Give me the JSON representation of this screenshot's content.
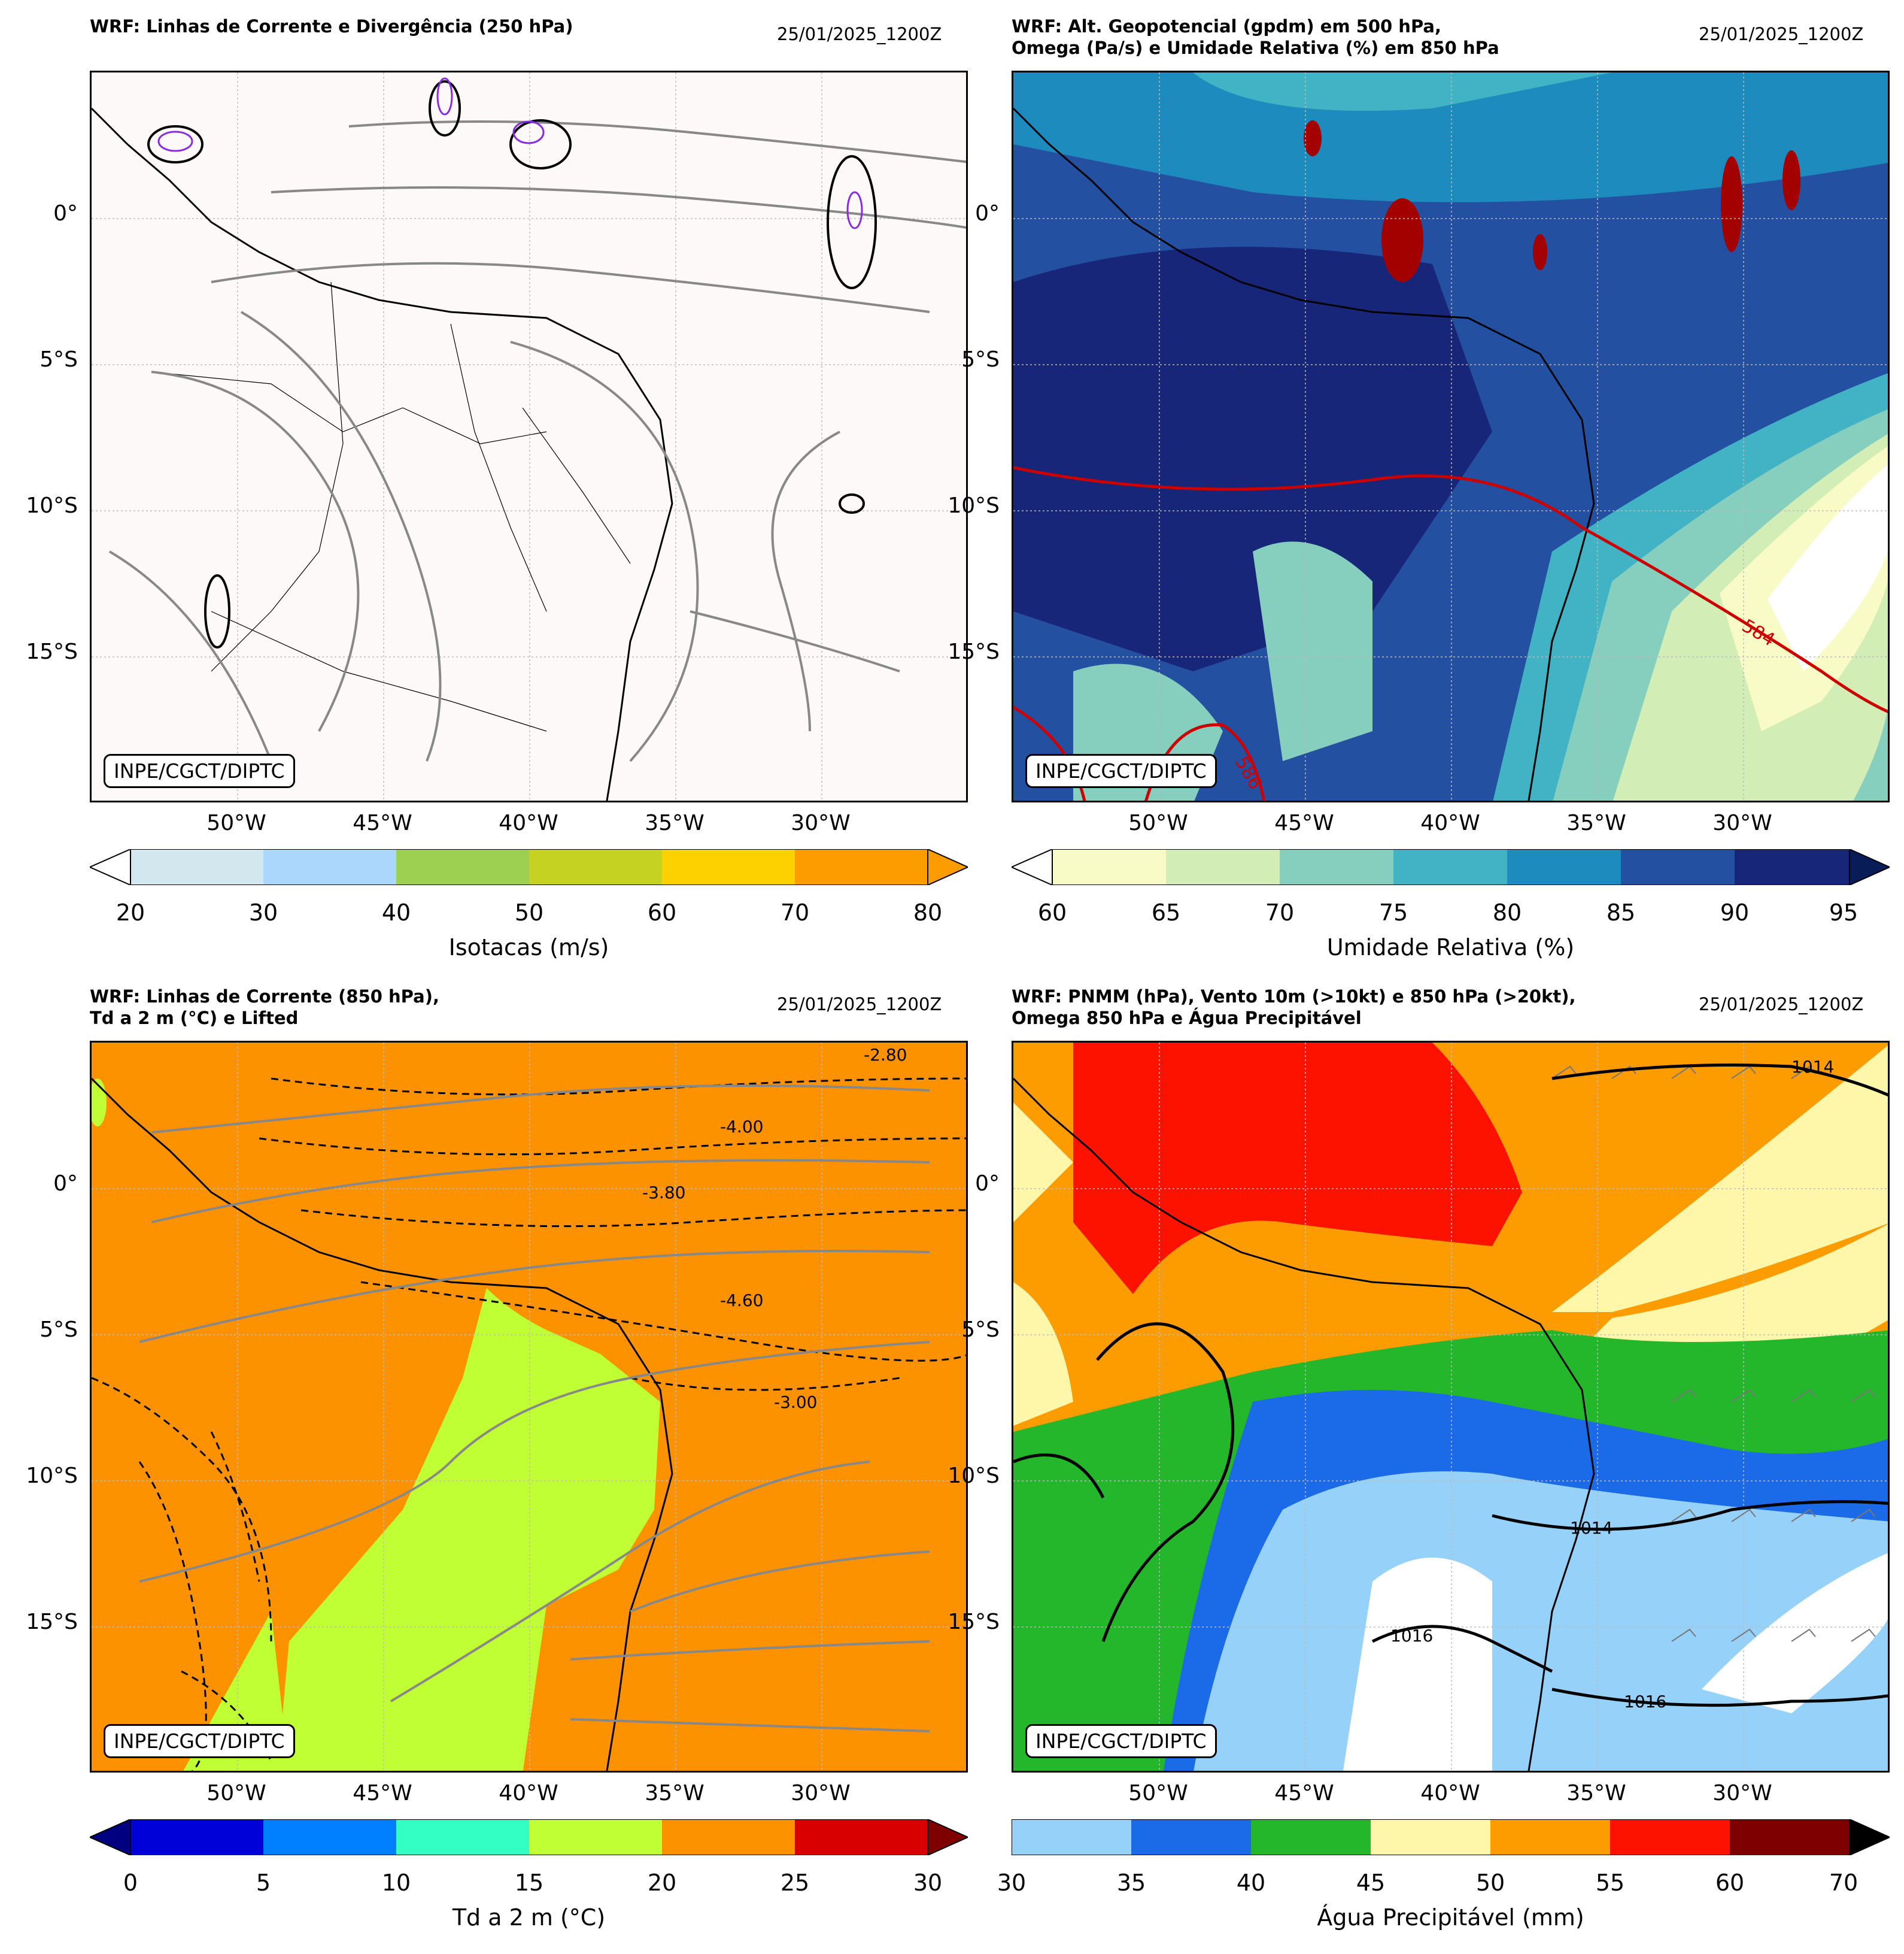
{
  "panels": [
    {
      "title": "WRF: Linhas de Corrente e Divergência (250 hPa)",
      "date": "25/01/2025_1200Z",
      "credit": "INPE/CGCT/DIPTC",
      "colorbar_label": "Isotacas (m/s)",
      "ticks": [
        "20",
        "30",
        "40",
        "50",
        "60",
        "70",
        "80"
      ],
      "colors": [
        "#d2e8ee",
        "#aad7fb",
        "#9dcf51",
        "#c6d221",
        "#fdd100",
        "#fd9c00"
      ],
      "ext_low": "#ffffff",
      "ext_high": "#fd9c00",
      "background": "#fcf9f8"
    },
    {
      "title": "WRF: Alt. Geopotencial (gpdm) em 500 hPa,\nOmega (Pa/s) e Umidade Relativa (%) em 850 hPa",
      "date": "25/01/2025_1200Z",
      "credit": "INPE/CGCT/DIPTC",
      "colorbar_label": "Umidade Relativa (%)",
      "ticks": [
        "60",
        "65",
        "70",
        "75",
        "80",
        "85",
        "90",
        "95"
      ],
      "colors": [
        "#f9fbc7",
        "#d2edb6",
        "#86cebd",
        "#41b3c4",
        "#1e8bbf",
        "#2350a0",
        "#172679"
      ],
      "ext_low": "#ffffff",
      "ext_high": "#081d58",
      "background": "#1c3f93",
      "contour_labels": [
        "584",
        "586"
      ]
    },
    {
      "title": "WRF: Linhas de Corrente (850 hPa),\nTd a 2 m (°C) e Lifted",
      "date": "25/01/2025_1200Z",
      "credit": "INPE/CGCT/DIPTC",
      "colorbar_label": "Td a 2 m (°C)",
      "ticks": [
        "0",
        "5",
        "10",
        "15",
        "20",
        "25",
        "30"
      ],
      "colors": [
        "#0000d8",
        "#0080ff",
        "#33ffc5",
        "#bfff33",
        "#fd9200",
        "#d80000"
      ],
      "ext_low": "#000080",
      "ext_high": "#7f0000",
      "background": "#fd9200",
      "contour_labels": [
        "-4.00",
        "-3.80",
        "-2.80",
        "-4.60",
        "-3.00"
      ]
    },
    {
      "title": "WRF: PNMM (hPa), Vento 10m (>10kt) e 850 hPa (>20kt),\nOmega 850 hPa e Água Precipitável",
      "date": "25/01/2025_1200Z",
      "credit": "INPE/CGCT/DIPTC",
      "colorbar_label": "Água Precipitável (mm)",
      "ticks": [
        "30",
        "35",
        "40",
        "45",
        "50",
        "55",
        "60",
        "70"
      ],
      "colors": [
        "#96d1fa",
        "#1b6ae8",
        "#25b72b",
        "#fef6a9",
        "#fd9c00",
        "#fd1200",
        "#7e0000"
      ],
      "ext_low": "#96d1fa",
      "ext_high": "#000000",
      "background": "#fd9c00",
      "contour_labels": [
        "1014",
        "1016",
        "1014",
        "1016"
      ]
    }
  ],
  "lat_labels": [
    "0°",
    "5°S",
    "10°S",
    "15°S"
  ],
  "lon_labels": [
    "50°W",
    "45°W",
    "40°W",
    "35°W",
    "30°W"
  ]
}
